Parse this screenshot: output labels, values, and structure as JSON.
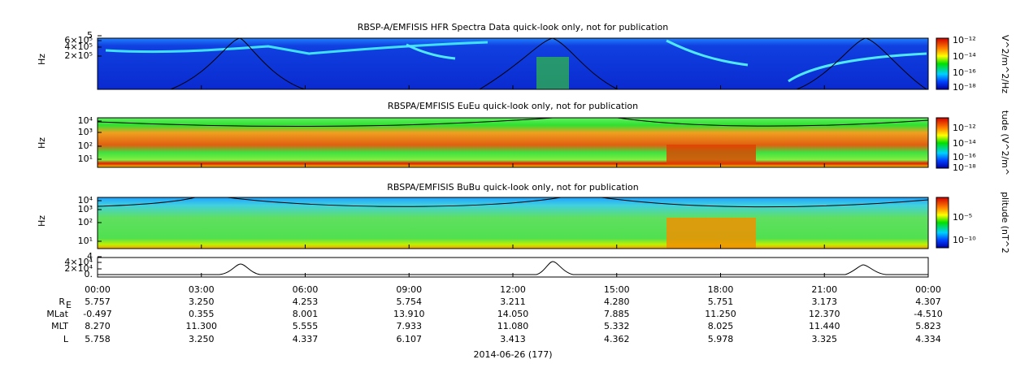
{
  "panels": [
    {
      "title": "RBSP-A/EMFISIS  HFR Spectra Data quick-look only, not for publication",
      "ylabel": "Hz",
      "yticks": [
        "5",
        "6×10⁵",
        "4×10⁵",
        "2×10⁵"
      ],
      "colorbar_title": "V^2/m^2/Hz",
      "colorbar_ticks": [
        "10⁻¹²",
        "10⁻¹⁴",
        "10⁻¹⁶",
        "10⁻¹⁸"
      ]
    },
    {
      "title": "RBSPA/EMFISIS  EuEu quick-look only, not for publication",
      "ylabel": "Hz",
      "yticks": [
        "10⁴",
        "10³",
        "10²",
        "10¹"
      ],
      "colorbar_title": "tude (V^2/m^",
      "colorbar_ticks": [
        "10⁻¹²",
        "10⁻¹⁴",
        "10⁻¹⁶",
        "10⁻¹⁸"
      ]
    },
    {
      "title": "RBSPA/EMFISIS  BuBu quick-look only, not for publication",
      "ylabel": "Hz",
      "yticks": [
        "10⁴",
        "10³",
        "10²",
        "10¹"
      ],
      "colorbar_title": "plitude (nT^2",
      "colorbar_ticks": [
        "10⁻⁵",
        "10⁻¹⁰"
      ]
    },
    {
      "yticks": [
        "4",
        "4×10⁴",
        "2×10⁴",
        "0."
      ]
    }
  ],
  "ephemeris": {
    "times": [
      "00:00",
      "03:00",
      "06:00",
      "09:00",
      "12:00",
      "15:00",
      "18:00",
      "21:00",
      "00:00"
    ],
    "rows": [
      {
        "label": "R",
        "sub": "E",
        "values": [
          "5.757",
          "3.250",
          "4.253",
          "5.754",
          "3.211",
          "4.280",
          "5.751",
          "3.173",
          "4.307"
        ]
      },
      {
        "label": "MLat",
        "values": [
          "-0.497",
          "0.355",
          "8.001",
          "13.910",
          "14.050",
          "7.885",
          "11.250",
          "12.370",
          "-4.510"
        ]
      },
      {
        "label": "MLT",
        "values": [
          "8.270",
          "11.300",
          "5.555",
          "7.933",
          "11.080",
          "5.332",
          "8.025",
          "11.440",
          "5.823"
        ]
      },
      {
        "label": "L",
        "values": [
          "5.758",
          "3.250",
          "4.337",
          "6.107",
          "3.413",
          "4.362",
          "5.978",
          "3.325",
          "4.334"
        ]
      }
    ],
    "date": "2014-06-26 (177)"
  }
}
